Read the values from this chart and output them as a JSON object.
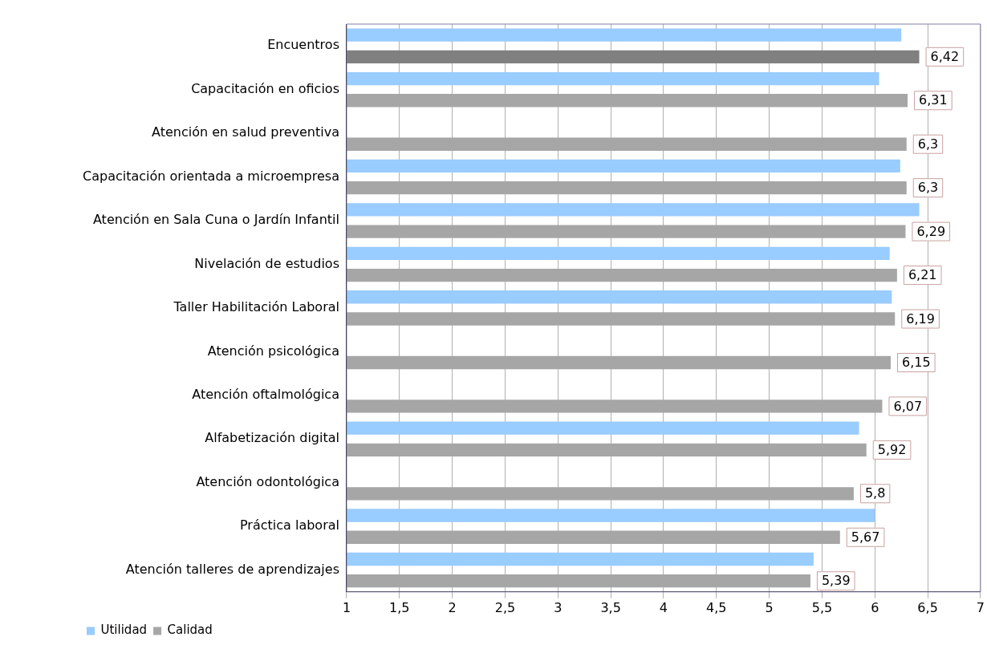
{
  "chart_data": {
    "type": "bar",
    "orientation": "horizontal",
    "categories": [
      "Encuentros",
      "Capacitación en oficios",
      "Atención en salud preventiva",
      "Capacitación orientada a microempresa",
      "Atención en Sala Cuna o Jardín Infantil",
      "Nivelación de estudios",
      "Taller Habilitación Laboral",
      "Atención psicológica",
      "Atención oftalmológica",
      "Alfabetización digital",
      "Atención odontológica",
      "Práctica laboral",
      "Atención talleres de aprendizajes"
    ],
    "series": [
      {
        "name": "Utilidad",
        "color": "#99ccff",
        "values": [
          6.25,
          6.04,
          null,
          6.24,
          6.42,
          6.14,
          6.16,
          null,
          null,
          5.85,
          null,
          6.0,
          5.42
        ]
      },
      {
        "name": "Calidad",
        "color": "#a6a6a6",
        "colors": [
          "#808080",
          "#a6a6a6",
          "#a6a6a6",
          "#a6a6a6",
          "#a6a6a6",
          "#a6a6a6",
          "#a6a6a6",
          "#a6a6a6",
          "#a6a6a6",
          "#a6a6a6",
          "#a6a6a6",
          "#a6a6a6",
          "#a6a6a6"
        ],
        "values": [
          6.42,
          6.31,
          6.3,
          6.3,
          6.29,
          6.21,
          6.19,
          6.15,
          6.07,
          5.92,
          5.8,
          5.67,
          5.39
        ],
        "value_labels": [
          "6,42",
          "6,31",
          "6,3",
          "6,3",
          "6,29",
          "6,21",
          "6,19",
          "6,15",
          "6,07",
          "5,92",
          "5,8",
          "5,67",
          "5,39"
        ]
      }
    ],
    "xlim": [
      1,
      7
    ],
    "xticks": [
      1,
      {
        "value": 1.5,
        "label": "1,5"
      },
      2,
      {
        "value": 2.5,
        "label": "2,5"
      },
      3,
      {
        "value": 3.5,
        "label": "3,5"
      },
      4,
      {
        "value": 4.5,
        "label": "4,5"
      },
      5,
      {
        "value": 5.5,
        "label": "5,5"
      },
      6,
      {
        "value": 6.5,
        "label": "6,5"
      },
      7
    ],
    "grid": "x",
    "legend": "bottom left"
  }
}
